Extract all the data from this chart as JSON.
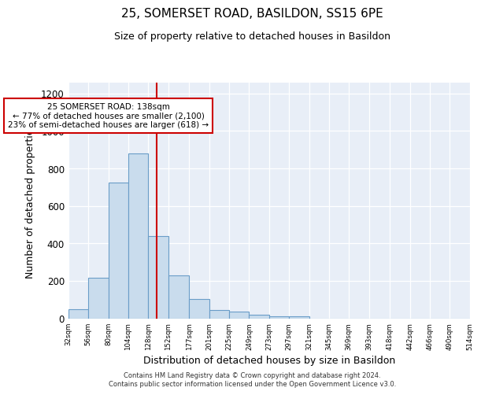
{
  "title": "25, SOMERSET ROAD, BASILDON, SS15 6PE",
  "subtitle": "Size of property relative to detached houses in Basildon",
  "xlabel": "Distribution of detached houses by size in Basildon",
  "ylabel": "Number of detached properties",
  "bin_edges": [
    32,
    56,
    80,
    104,
    128,
    152,
    177,
    201,
    225,
    249,
    273,
    297,
    321,
    345,
    369,
    393,
    418,
    442,
    466,
    490,
    514
  ],
  "bin_counts": [
    50,
    215,
    725,
    880,
    440,
    230,
    105,
    45,
    35,
    20,
    12,
    10,
    0,
    0,
    0,
    0,
    0,
    0,
    0,
    0
  ],
  "bar_facecolor": "#c9dced",
  "bar_edgecolor": "#6a9dc8",
  "vline_x": 138,
  "vline_color": "#cc0000",
  "annotation_line1": "25 SOMERSET ROAD: 138sqm",
  "annotation_line2": "← 77% of detached houses are smaller (2,100)",
  "annotation_line3": "23% of semi-detached houses are larger (618) →",
  "annotation_box_edgecolor": "#cc0000",
  "annotation_box_facecolor": "#ffffff",
  "ylim": [
    0,
    1260
  ],
  "xlim": [
    32,
    514
  ],
  "tick_labels": [
    "32sqm",
    "56sqm",
    "80sqm",
    "104sqm",
    "128sqm",
    "152sqm",
    "177sqm",
    "201sqm",
    "225sqm",
    "249sqm",
    "273sqm",
    "297sqm",
    "321sqm",
    "345sqm",
    "369sqm",
    "393sqm",
    "418sqm",
    "442sqm",
    "466sqm",
    "490sqm",
    "514sqm"
  ],
  "tick_positions": [
    32,
    56,
    80,
    104,
    128,
    152,
    177,
    201,
    225,
    249,
    273,
    297,
    321,
    345,
    369,
    393,
    418,
    442,
    466,
    490,
    514
  ],
  "ytick_values": [
    0,
    200,
    400,
    600,
    800,
    1000,
    1200
  ],
  "footnote": "Contains HM Land Registry data © Crown copyright and database right 2024.\nContains public sector information licensed under the Open Government Licence v3.0.",
  "bg_color": "#ffffff",
  "plot_bg_color": "#e8eef7",
  "grid_color": "#ffffff"
}
